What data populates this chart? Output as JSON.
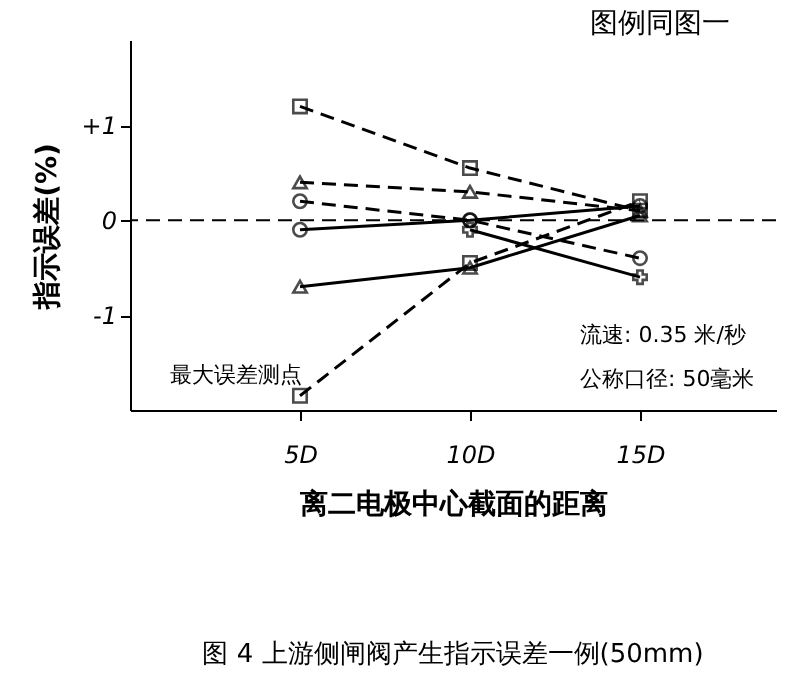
{
  "chart_data": {
    "type": "line",
    "title": "图 4 上游侧闸阀产生指示误差一例(50mm)",
    "xlabel": "离二电极中心截面的距离",
    "ylabel": "指示误差(%)",
    "annotations": [
      "图例同图一",
      "流速: 0.35 米/秒",
      "公称口径: 50毫米",
      "最大误差测点"
    ],
    "x": [
      5,
      10,
      15
    ],
    "series": [
      {
        "color": "#000000",
        "marker": "square",
        "line_style": "dashed",
        "values": [
          1.2,
          0.55,
          0.1
        ]
      },
      {
        "color": "#000000",
        "marker": "triangle",
        "line_style": "dashed",
        "values": [
          0.4,
          0.3,
          0.1
        ]
      },
      {
        "color": "#000000",
        "marker": "circle",
        "line_style": "dashed",
        "values": [
          0.2,
          0.0,
          -0.4
        ]
      },
      {
        "color": "#000000",
        "marker": "circle",
        "line_style": "solid",
        "values": [
          -0.1,
          0.0,
          0.15
        ]
      },
      {
        "color": "#000000",
        "marker": "triangle",
        "line_style": "solid",
        "values": [
          -0.7,
          -0.5,
          0.05
        ]
      },
      {
        "color": "#000000",
        "marker": "square",
        "line_style": "dashed",
        "values": [
          -1.85,
          -0.45,
          0.2
        ]
      },
      {
        "color": "#000000",
        "marker": "cross",
        "line_style": "solid",
        "values": [
          null,
          -0.1,
          -0.6
        ]
      }
    ],
    "xlim": [
      0,
      19
    ],
    "xticks": [
      {
        "value": 5,
        "label": "5D"
      },
      {
        "value": 10,
        "label": "10D"
      },
      {
        "value": 15,
        "label": "15D"
      }
    ],
    "ylim": [
      -2,
      1.9
    ],
    "yticks": [
      {
        "value": 1,
        "label": "+1"
      },
      0,
      -1
    ],
    "ref_lines": [
      {
        "axis": "y",
        "value": 0,
        "line_style": "dashed"
      }
    ],
    "grid": false
  }
}
